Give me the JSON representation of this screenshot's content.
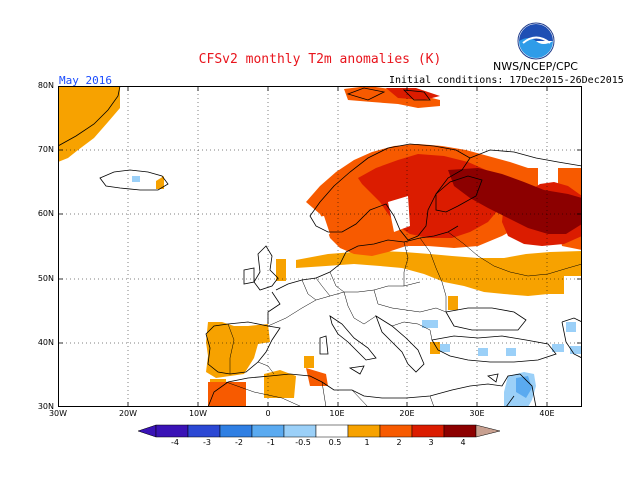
{
  "header": {
    "title": "CFSv2 monthly T2m anomalies (K)",
    "agency": "NWS/NCEP/CPC",
    "logo_text": "NOAA",
    "month": "May 2016",
    "initial_conditions": "Initial conditions: 17Dec2015-26Dec2015"
  },
  "map": {
    "lat_labels": [
      "80N",
      "70N",
      "60N",
      "50N",
      "40N",
      "30N"
    ],
    "lon_labels": [
      "30W",
      "20W",
      "10W",
      "0",
      "10E",
      "20E",
      "30E",
      "40E"
    ],
    "lon_range": [
      -30,
      45
    ],
    "lat_range": [
      30,
      80
    ],
    "grid": true
  },
  "colorbar": {
    "labels": [
      "-4",
      "-3",
      "-2",
      "-1",
      "-0.5",
      "0.5",
      "1",
      "2",
      "3",
      "4"
    ],
    "colors": [
      "#3a13b6",
      "#2b48d4",
      "#2f7fe3",
      "#5aaaf0",
      "#9bd0f8",
      "#ffffff",
      "#f7a200",
      "#f75a00",
      "#db1c00",
      "#8c0000",
      "#c8a090"
    ]
  },
  "colors": {
    "title": "#e8141c",
    "month": "#1a4cff",
    "anom_0_5_1": "#f7a200",
    "anom_1_2": "#f75a00",
    "anom_2_3": "#db1c00",
    "anom_3_4": "#8c0000",
    "anom_neg_0_5_1": "#9bd0f8",
    "anom_neg_1_2": "#5aaaf0"
  }
}
